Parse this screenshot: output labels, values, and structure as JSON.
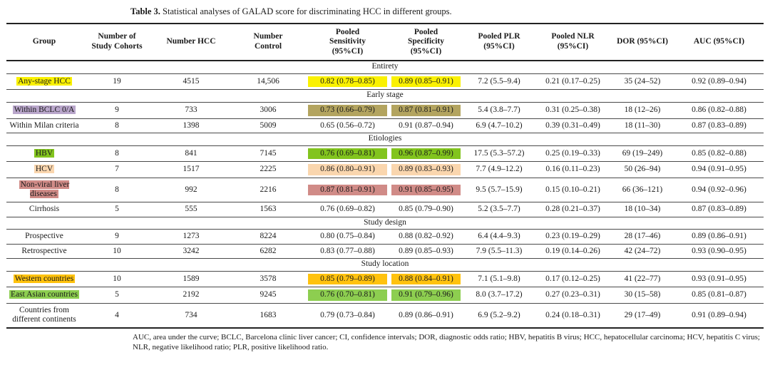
{
  "title": {
    "label": "Table 3.",
    "text": " Statistical analyses of GALAD score for discriminating HCC in different groups."
  },
  "colors": {
    "yellow": "#faf101",
    "purple": "#b9a6cb",
    "olive": "#b3a45f",
    "green": "#82c41e",
    "peach": "#fad6ae",
    "rose": "#d08b87",
    "amber": "#ffc20e",
    "lightgreen": "#8dce50"
  },
  "table": {
    "columns": [
      "Group",
      "Number of\nStudy Cohorts",
      "Number HCC",
      "Number\nControl",
      "Pooled\nSensitivity\n(95%CI)",
      "Pooled\nSpecificity\n(95%CI)",
      "Pooled PLR\n(95%CI)",
      "Pooled NLR\n(95%CI)",
      "DOR (95%CI)",
      "AUC (95%CI)"
    ],
    "sections": [
      {
        "label": "Entirety",
        "rows": [
          {
            "group": "Any-stage HCC",
            "cohorts": "19",
            "hcc": "4515",
            "control": "14,506",
            "sensitivity": "0.82 (0.78–0.85)",
            "specificity": "0.89 (0.85–0.91)",
            "plr": "7.2 (5.5–9.4)",
            "nlr": "0.21 (0.17–0.25)",
            "dor": "35 (24–52)",
            "auc": "0.92 (0.89–0.94)",
            "highlight": {
              "group": "yellow",
              "sensitivity": "yellow",
              "specificity": "yellow"
            }
          }
        ]
      },
      {
        "label": "Early stage",
        "rows": [
          {
            "group": "Within BCLC 0/A",
            "cohorts": "9",
            "hcc": "733",
            "control": "3006",
            "sensitivity": "0.73 (0.66–0.79)",
            "specificity": "0.87 (0.81–0.91)",
            "plr": "5.4 (3.8–7.7)",
            "nlr": "0.31 (0.25–0.38)",
            "dor": "18 (12–26)",
            "auc": "0.86 (0.82–0.88)",
            "highlight": {
              "group": "purple",
              "sensitivity": "olive",
              "specificity": "olive"
            }
          },
          {
            "group": "Within Milan criteria",
            "cohorts": "8",
            "hcc": "1398",
            "control": "5009",
            "sensitivity": "0.65 (0.56–0.72)",
            "specificity": "0.91 (0.87–0.94)",
            "plr": "6.9 (4.7–10.2)",
            "nlr": "0.39 (0.31–0.49)",
            "dor": "18 (11–30)",
            "auc": "0.87 (0.83–0.89)",
            "highlight": {}
          }
        ]
      },
      {
        "label": "Etiologies",
        "rows": [
          {
            "group": "HBV",
            "cohorts": "8",
            "hcc": "841",
            "control": "7145",
            "sensitivity": "0.76 (0.69–0.81)",
            "specificity": "0.96 (0.87–0.99)",
            "plr": "17.5 (5.3–57.2)",
            "nlr": "0.25 (0.19–0.33)",
            "dor": "69 (19–249)",
            "auc": "0.85 (0.82–0.88)",
            "highlight": {
              "group": "green",
              "sensitivity": "green",
              "specificity": "green"
            }
          },
          {
            "group": "HCV",
            "cohorts": "7",
            "hcc": "1517",
            "control": "2225",
            "sensitivity": "0.86 (0.80–0.91)",
            "specificity": "0.89 (0.83–0.93)",
            "plr": "7.7 (4.9–12.2)",
            "nlr": "0.16 (0.11–0.23)",
            "dor": "50 (26–94)",
            "auc": "0.94 (0.91–0.95)",
            "highlight": {
              "group": "peach",
              "sensitivity": "peach",
              "specificity": "peach"
            }
          },
          {
            "group": "Non-viral liver diseases",
            "cohorts": "8",
            "hcc": "992",
            "control": "2216",
            "sensitivity": "0.87 (0.81–0.91)",
            "specificity": "0.91 (0.85–0.95)",
            "plr": "9.5 (5.7–15.9)",
            "nlr": "0.15 (0.10–0.21)",
            "dor": "66 (36–121)",
            "auc": "0.94 (0.92–0.96)",
            "highlight": {
              "group": "rose",
              "sensitivity": "rose",
              "specificity": "rose"
            }
          },
          {
            "group": "Cirrhosis",
            "cohorts": "5",
            "hcc": "555",
            "control": "1563",
            "sensitivity": "0.76 (0.69–0.82)",
            "specificity": "0.85 (0.79–0.90)",
            "plr": "5.2 (3.5–7.7)",
            "nlr": "0.28 (0.21–0.37)",
            "dor": "18 (10–34)",
            "auc": "0.87 (0.83–0.89)",
            "highlight": {}
          }
        ]
      },
      {
        "label": "Study design",
        "rows": [
          {
            "group": "Prospective",
            "cohorts": "9",
            "hcc": "1273",
            "control": "8224",
            "sensitivity": "0.80 (0.75–0.84)",
            "specificity": "0.88 (0.82–0.92)",
            "plr": "6.4 (4.4–9.3)",
            "nlr": "0.23 (0.19–0.29)",
            "dor": "28 (17–46)",
            "auc": "0.89 (0.86–0.91)",
            "highlight": {}
          },
          {
            "group": "Retrospective",
            "cohorts": "10",
            "hcc": "3242",
            "control": "6282",
            "sensitivity": "0.83 (0.77–0.88)",
            "specificity": "0.89 (0.85–0.93)",
            "plr": "7.9 (5.5–11.3)",
            "nlr": "0.19 (0.14–0.26)",
            "dor": "42 (24–72)",
            "auc": "0.93 (0.90–0.95)",
            "highlight": {}
          }
        ]
      },
      {
        "label": "Study location",
        "rows": [
          {
            "group": "Western countries",
            "cohorts": "10",
            "hcc": "1589",
            "control": "3578",
            "sensitivity": "0.85 (0.79–0.89)",
            "specificity": "0.88 (0.84–0.91)",
            "plr": "7.1 (5.1–9.8)",
            "nlr": "0.17 (0.12–0.25)",
            "dor": "41 (22–77)",
            "auc": "0.93 (0.91–0.95)",
            "highlight": {
              "group": "amber",
              "sensitivity": "amber",
              "specificity": "amber"
            }
          },
          {
            "group": "East Asian countries",
            "cohorts": "5",
            "hcc": "2192",
            "control": "9245",
            "sensitivity": "0.76 (0.70–0.81)",
            "specificity": "0.91 (0.79–0.96)",
            "plr": "8.0 (3.7–17.2)",
            "nlr": "0.27 (0.23–0.31)",
            "dor": "30 (15–58)",
            "auc": "0.85 (0.81–0.87)",
            "highlight": {
              "group": "lightgreen",
              "sensitivity": "lightgreen",
              "specificity": "lightgreen"
            }
          },
          {
            "group": "Countries from different continents",
            "cohorts": "4",
            "hcc": "734",
            "control": "1683",
            "sensitivity": "0.79 (0.73–0.84)",
            "specificity": "0.89 (0.86–0.91)",
            "plr": "6.9 (5.2–9.2)",
            "nlr": "0.24 (0.18–0.31)",
            "dor": "29 (17–49)",
            "auc": "0.91 (0.89–0.94)",
            "highlight": {}
          }
        ]
      }
    ]
  },
  "footnote": "AUC, area under the curve; BCLC, Barcelona clinic liver cancer; CI, confidence intervals; DOR, diagnostic odds ratio; HBV, hepatitis B virus; HCC, hepatocellular carcinoma; HCV, hepatitis C virus; NLR, negative likelihood ratio; PLR, positive likelihood ratio."
}
